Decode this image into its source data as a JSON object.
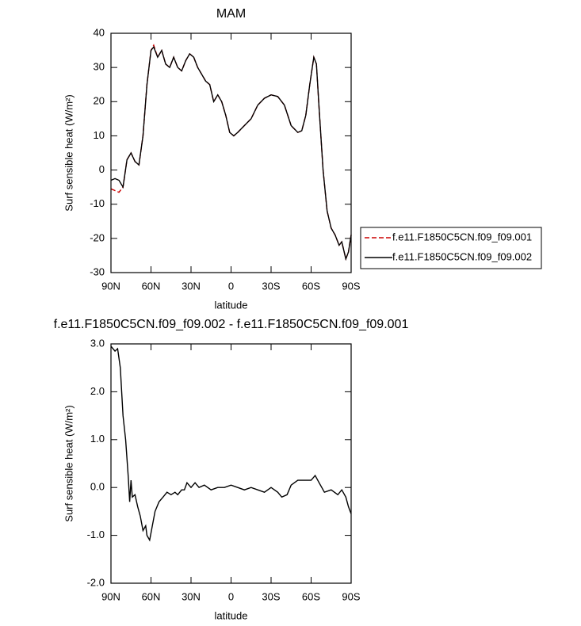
{
  "chart_data": [
    {
      "type": "line",
      "title": "MAM",
      "xlabel": "latitude",
      "ylabel": "Surf sensible heat (W/m²)",
      "x": [
        90,
        87,
        84,
        81,
        78,
        75,
        72,
        69,
        66,
        63,
        60,
        58,
        55,
        52,
        49,
        46,
        43,
        40,
        37,
        34,
        31,
        28,
        25,
        22,
        19,
        16,
        13,
        10,
        7,
        4,
        1,
        -2,
        -5,
        -10,
        -15,
        -20,
        -25,
        -30,
        -35,
        -40,
        -45,
        -50,
        -53,
        -56,
        -59,
        -62,
        -64,
        -66,
        -69,
        -72,
        -75,
        -78,
        -81,
        -83,
        -86,
        -88,
        -90
      ],
      "xlim": [
        90,
        -90
      ],
      "xticks": [
        {
          "value": 90,
          "label": "90N"
        },
        {
          "value": 60,
          "label": "60N"
        },
        {
          "value": 30,
          "label": "30N"
        },
        0,
        {
          "value": -30,
          "label": "30S"
        },
        {
          "value": -60,
          "label": "60S"
        },
        {
          "value": -90,
          "label": "90S"
        }
      ],
      "ylim": [
        -30,
        40
      ],
      "yticks": [
        -30,
        -20,
        -10,
        0,
        10,
        20,
        30,
        40
      ],
      "series": [
        {
          "name": "f.e11.F1850C5CN.f09_f09.001",
          "color": "#cc0000",
          "dashed": true,
          "values": [
            -5.5,
            -6,
            -6.5,
            -5,
            3,
            5,
            2.5,
            1.5,
            10,
            25,
            35,
            36.5,
            33,
            35,
            31,
            30,
            33,
            30,
            29,
            32,
            34,
            33,
            30,
            28,
            26,
            25,
            20,
            22,
            20,
            16,
            11,
            10,
            11,
            13,
            15,
            19,
            21,
            22,
            21.5,
            19,
            13,
            11,
            11.5,
            16,
            25,
            33,
            31,
            18,
            0,
            -12,
            -17,
            -19,
            -22,
            -21,
            -26,
            -24,
            -19
          ]
        },
        {
          "name": "f.e11.F1850C5CN.f09_f09.002",
          "color": "#000000",
          "dashed": false,
          "values": [
            -3,
            -2.5,
            -3,
            -5,
            3,
            5,
            2.5,
            1.5,
            10,
            25,
            35,
            36,
            33,
            35,
            31,
            30,
            33,
            30,
            29,
            32,
            34,
            33,
            30,
            28,
            26,
            25,
            20,
            22,
            20,
            16,
            11,
            10,
            11,
            13,
            15,
            19,
            21,
            22,
            21.5,
            19,
            13,
            11,
            11.5,
            16,
            25,
            33,
            31,
            18,
            0,
            -12,
            -17,
            -19,
            -22,
            -21,
            -26,
            -24,
            -19
          ]
        }
      ]
    },
    {
      "type": "line",
      "title": "f.e11.F1850C5CN.f09_f09.002 - f.e11.F1850C5CN.f09_f09.001",
      "xlabel": "latitude",
      "ylabel": "Surf sensible heat (W/m²)",
      "x": [
        90,
        87,
        85,
        83,
        81,
        79,
        77,
        76,
        75,
        74,
        72,
        70,
        68,
        66,
        64,
        63,
        61,
        59,
        57,
        54,
        51,
        48,
        45,
        42,
        40,
        37,
        35,
        33,
        30,
        27,
        24,
        20,
        15,
        10,
        5,
        0,
        -5,
        -10,
        -15,
        -20,
        -25,
        -30,
        -35,
        -38,
        -42,
        -45,
        -50,
        -55,
        -60,
        -63,
        -66,
        -70,
        -75,
        -80,
        -83,
        -86,
        -88,
        -90
      ],
      "xlim": [
        90,
        -90
      ],
      "xticks": [
        {
          "value": 90,
          "label": "90N"
        },
        {
          "value": 60,
          "label": "60N"
        },
        {
          "value": 30,
          "label": "30N"
        },
        0,
        {
          "value": -30,
          "label": "30S"
        },
        {
          "value": -60,
          "label": "60S"
        },
        {
          "value": -90,
          "label": "90S"
        }
      ],
      "ylim": [
        -2,
        3
      ],
      "yticks": [
        {
          "value": -2,
          "label": "-2.0"
        },
        {
          "value": -1,
          "label": "-1.0"
        },
        {
          "value": 0,
          "label": "0.0"
        },
        {
          "value": 1,
          "label": "1.0"
        },
        {
          "value": 2,
          "label": "2.0"
        },
        {
          "value": 3,
          "label": "3.0"
        }
      ],
      "series": [
        {
          "color": "#000000",
          "dashed": false,
          "values": [
            2.95,
            2.85,
            2.9,
            2.5,
            1.5,
            1.0,
            0.2,
            -0.3,
            0.15,
            -0.2,
            -0.15,
            -0.4,
            -0.6,
            -0.9,
            -0.8,
            -1.0,
            -1.1,
            -0.8,
            -0.5,
            -0.3,
            -0.2,
            -0.1,
            -0.15,
            -0.1,
            -0.15,
            -0.05,
            -0.05,
            0.1,
            0.0,
            0.1,
            0.0,
            0.05,
            -0.05,
            0.0,
            0.0,
            0.05,
            0.0,
            -0.05,
            0.0,
            -0.05,
            -0.1,
            0.0,
            -0.1,
            -0.2,
            -0.15,
            0.05,
            0.15,
            0.15,
            0.15,
            0.25,
            0.1,
            -0.1,
            -0.05,
            -0.15,
            -0.05,
            -0.2,
            -0.4,
            -0.55
          ]
        }
      ]
    }
  ]
}
